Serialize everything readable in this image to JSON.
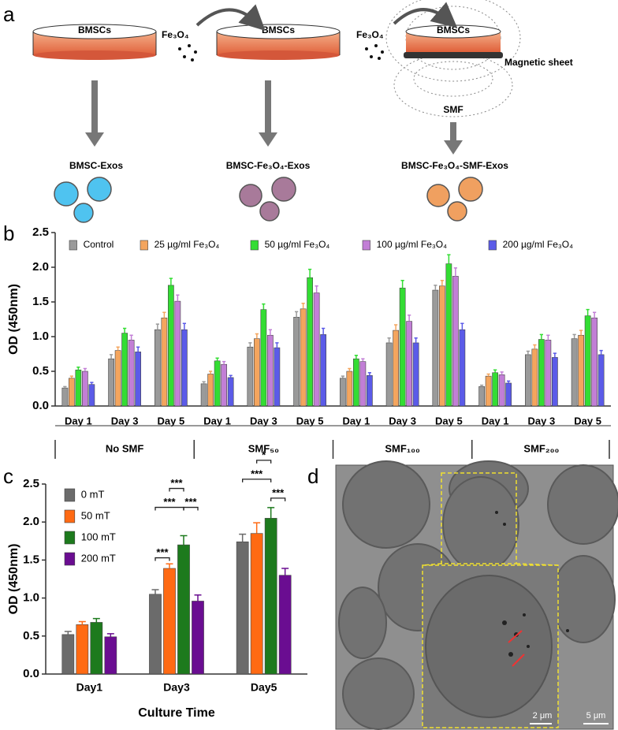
{
  "panel_labels": [
    "a",
    "b",
    "c",
    "d"
  ],
  "diagram": {
    "dish": "BMSCs",
    "particles": "Fe₃O₄",
    "sheet": "Magnetic sheet",
    "field": "SMF",
    "products": [
      "BMSC-Exos",
      "BMSC-Fe₃O₄-Exos",
      "BMSC-Fe₃O₄-SMF-Exos"
    ]
  },
  "chart_data": [
    {
      "type": "bar",
      "ylabel": "OD (450nm)",
      "categories": [
        "Day 1",
        "Day 3",
        "Day 5",
        "Day 1",
        "Day 3",
        "Day 5",
        "Day 1",
        "Day 3",
        "Day 5",
        "Day 1",
        "Day 3",
        "Day 5"
      ],
      "groups": [
        "No SMF",
        "SMF₅₀",
        "SMF₁₀₀",
        "SMF₂₀₀"
      ],
      "ylim": [
        0,
        2.5
      ],
      "yticks": [
        {
          "value": 0,
          "label": "0.0"
        },
        0.5,
        {
          "value": 1,
          "label": "1.0"
        },
        1.5,
        {
          "value": 2,
          "label": "2.0"
        },
        2.5
      ],
      "series": [
        {
          "name": "Control",
          "color": "#9a9a9a",
          "values": [
            0.26,
            0.68,
            1.1,
            0.32,
            0.85,
            1.28,
            0.4,
            0.91,
            1.67,
            0.28,
            0.74,
            0.97
          ],
          "errors": [
            0.02,
            0.06,
            0.08,
            0.03,
            0.06,
            0.08,
            0.03,
            0.07,
            0.07,
            0.02,
            0.05,
            0.06
          ]
        },
        {
          "name": "25 µg/ml Fe₃O₄",
          "color": "#f4a55e",
          "values": [
            0.4,
            0.8,
            1.27,
            0.46,
            0.97,
            1.4,
            0.5,
            1.09,
            1.73,
            0.43,
            0.82,
            1.02
          ],
          "errors": [
            0.03,
            0.05,
            0.08,
            0.04,
            0.07,
            0.08,
            0.04,
            0.08,
            0.08,
            0.03,
            0.06,
            0.07
          ]
        },
        {
          "name": "50 µg/ml Fe₃O₄",
          "color": "#33dd33",
          "values": [
            0.52,
            1.05,
            1.74,
            0.65,
            1.39,
            1.85,
            0.68,
            1.7,
            2.05,
            0.48,
            0.96,
            1.3
          ],
          "errors": [
            0.04,
            0.07,
            0.1,
            0.04,
            0.08,
            0.12,
            0.05,
            0.11,
            0.13,
            0.04,
            0.07,
            0.09
          ]
        },
        {
          "name": "100 µg/ml Fe₃O₄",
          "color": "#c27fd6",
          "values": [
            0.5,
            0.95,
            1.51,
            0.6,
            1.02,
            1.63,
            0.64,
            1.22,
            1.87,
            0.45,
            0.95,
            1.27
          ],
          "errors": [
            0.04,
            0.07,
            0.09,
            0.04,
            0.08,
            0.1,
            0.04,
            0.09,
            0.12,
            0.04,
            0.07,
            0.08
          ]
        },
        {
          "name": "200 µg/ml Fe₃O₄",
          "color": "#5b5be8",
          "values": [
            0.31,
            0.78,
            1.1,
            0.41,
            0.84,
            1.03,
            0.44,
            0.91,
            1.1,
            0.33,
            0.7,
            0.74
          ],
          "errors": [
            0.03,
            0.07,
            0.09,
            0.03,
            0.07,
            0.09,
            0.04,
            0.07,
            0.09,
            0.03,
            0.06,
            0.06
          ]
        }
      ]
    },
    {
      "type": "bar",
      "ylabel": "OD (450nm)",
      "xlabel": "Culture Time",
      "categories": [
        "Day1",
        "Day3",
        "Day5"
      ],
      "ylim": [
        0,
        2.5
      ],
      "yticks": [
        {
          "value": 0,
          "label": "0.0"
        },
        0.5,
        {
          "value": 1,
          "label": "1.0"
        },
        1.5,
        {
          "value": 2,
          "label": "2.0"
        },
        2.5
      ],
      "series": [
        {
          "name": "0 mT",
          "color": "#6b6b6b",
          "values": [
            0.52,
            1.05,
            1.74
          ],
          "errors": [
            0.04,
            0.06,
            0.1
          ]
        },
        {
          "name": "50 mT",
          "color": "#ff6a13",
          "values": [
            0.65,
            1.39,
            1.85
          ],
          "errors": [
            0.04,
            0.06,
            0.14
          ]
        },
        {
          "name": "100 mT",
          "color": "#1d7a1d",
          "values": [
            0.68,
            1.7,
            2.05
          ],
          "errors": [
            0.05,
            0.12,
            0.14
          ]
        },
        {
          "name": "200 mT",
          "color": "#6a0d91",
          "values": [
            0.49,
            0.96,
            1.3
          ],
          "errors": [
            0.04,
            0.08,
            0.09
          ]
        }
      ],
      "annotations": [
        "***",
        "***",
        "***",
        "***",
        "*",
        "***",
        "***"
      ]
    }
  ],
  "micrograph": {
    "scale_bars": [
      "2 μm",
      "5 μm"
    ]
  }
}
